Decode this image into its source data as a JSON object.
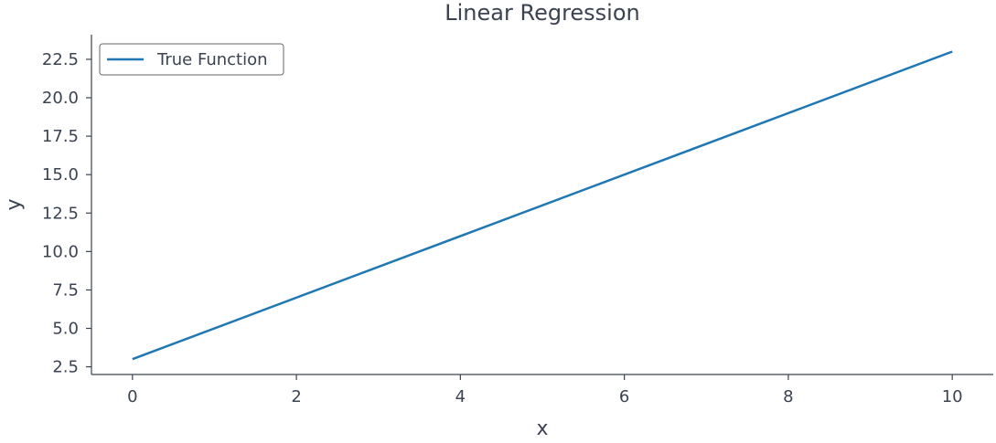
{
  "chart_data": {
    "type": "line",
    "title": "Linear Regression",
    "xlabel": "x",
    "ylabel": "y",
    "xlim": [
      -0.5,
      10.5
    ],
    "ylim": [
      2.0,
      24.1
    ],
    "xticks": [
      0,
      2,
      4,
      6,
      8,
      10
    ],
    "xtick_labels": [
      "0",
      "2",
      "4",
      "6",
      "8",
      "10"
    ],
    "yticks": [
      2.5,
      5.0,
      7.5,
      10.0,
      12.5,
      15.0,
      17.5,
      20.0,
      22.5
    ],
    "ytick_labels": [
      "2.5",
      "5.0",
      "7.5",
      "10.0",
      "12.5",
      "15.0",
      "17.5",
      "20.0",
      "22.5"
    ],
    "grid": false,
    "legend_position": "top-left",
    "series": [
      {
        "name": "True Function",
        "color": "#1f77b4",
        "x": [
          0,
          10
        ],
        "y": [
          3.0,
          23.0
        ]
      }
    ]
  },
  "colors": {
    "axis": "#3b4351",
    "text": "#3b4351"
  }
}
